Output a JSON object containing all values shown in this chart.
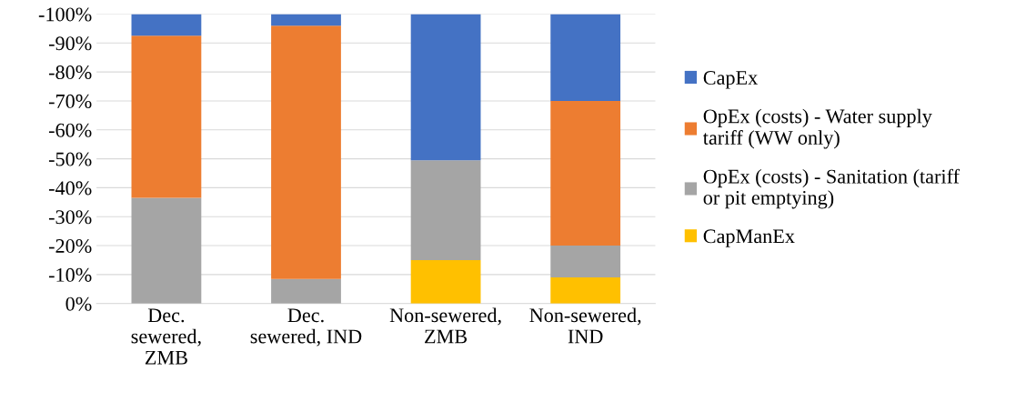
{
  "chart_data": {
    "type": "bar",
    "stacked": true,
    "categories": [
      "Dec.\nsewered,\nZMB",
      "Dec.\nsewered, IND",
      "Non-sewered,\nZMB",
      "Non-sewered,\nIND"
    ],
    "series": [
      {
        "name": "CapManEx",
        "color": "#ffc000",
        "values": [
          0,
          0,
          -15,
          -9
        ]
      },
      {
        "name": "OpEx (costs) - Sanitation (tariff\nor pit emptying)",
        "color": "#a5a5a5",
        "values": [
          -36.5,
          -8.5,
          -34.5,
          -11
        ]
      },
      {
        "name": "OpEx (costs) - Water supply\ntariff (WW only)",
        "color": "#ed7d31",
        "values": [
          -56,
          -87.5,
          0,
          -50
        ]
      },
      {
        "name": "CapEx",
        "color": "#4472c4",
        "values": [
          -7.5,
          -4,
          -50.5,
          -30
        ]
      }
    ],
    "ylim": [
      0,
      -100
    ],
    "yticks": [
      {
        "value": 0,
        "label": "0%"
      },
      {
        "value": -10,
        "label": "-10%"
      },
      {
        "value": -20,
        "label": "-20%"
      },
      {
        "value": -30,
        "label": "-30%"
      },
      {
        "value": -40,
        "label": "-40%"
      },
      {
        "value": -50,
        "label": "-50%"
      },
      {
        "value": -60,
        "label": "-60%"
      },
      {
        "value": -70,
        "label": "-70%"
      },
      {
        "value": -80,
        "label": "-80%"
      },
      {
        "value": -90,
        "label": "-90%"
      },
      {
        "value": -100,
        "label": "-100%"
      }
    ],
    "grid": "y",
    "legend": "right"
  }
}
